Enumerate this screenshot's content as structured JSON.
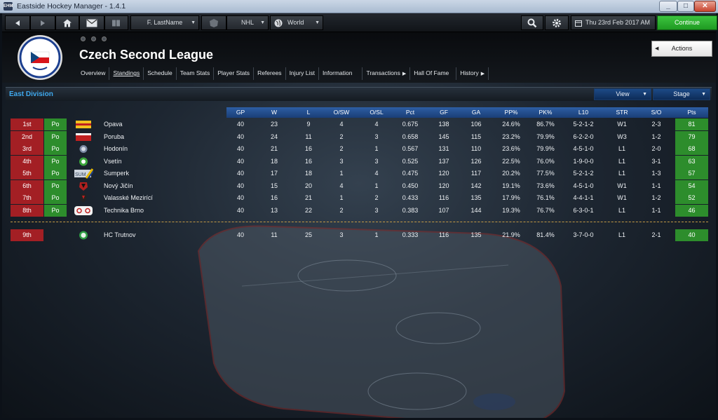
{
  "window": {
    "title": "Eastside Hockey Manager - 1.4.1",
    "app_icon": "EHM"
  },
  "toolbar": {
    "manager": "F. LastName",
    "league": "NHL",
    "region": "World",
    "date": "Thu 23rd Feb 2017 AM",
    "continue": "Continue"
  },
  "header": {
    "title": "Czech Second League",
    "actions": "Actions",
    "nav": [
      "Overview",
      "Standings",
      "Schedule",
      "Team Stats",
      "Player Stats",
      "Referees",
      "Injury List",
      "Information",
      "Transactions",
      "Hall Of Fame",
      "History"
    ]
  },
  "standings": {
    "division": "East Division",
    "view": "View",
    "stage": "Stage",
    "columns": [
      "GP",
      "W",
      "L",
      "O/SW",
      "O/SL",
      "Pct",
      "GF",
      "GA",
      "PP%",
      "PK%",
      "L10",
      "STR",
      "S/O",
      "Pts"
    ],
    "rows": [
      {
        "pos": "1st",
        "q": "Po",
        "team": "Opava",
        "gp": "40",
        "w": "23",
        "l": "9",
        "osw": "4",
        "osl": "4",
        "pct": "0.675",
        "gf": "138",
        "ga": "106",
        "pp": "24.6%",
        "pk": "86.7%",
        "l10": "5-2-1-2",
        "str": "W1",
        "so": "2-3",
        "pts": "81"
      },
      {
        "pos": "2nd",
        "q": "Po",
        "team": "Poruba",
        "gp": "40",
        "w": "24",
        "l": "11",
        "osw": "2",
        "osl": "3",
        "pct": "0.658",
        "gf": "145",
        "ga": "115",
        "pp": "23.2%",
        "pk": "79.9%",
        "l10": "6-2-2-0",
        "str": "W3",
        "so": "1-2",
        "pts": "79"
      },
      {
        "pos": "3rd",
        "q": "Po",
        "team": "Hodonín",
        "gp": "40",
        "w": "21",
        "l": "16",
        "osw": "2",
        "osl": "1",
        "pct": "0.567",
        "gf": "131",
        "ga": "110",
        "pp": "23.6%",
        "pk": "79.9%",
        "l10": "4-5-1-0",
        "str": "L1",
        "so": "2-0",
        "pts": "68"
      },
      {
        "pos": "4th",
        "q": "Po",
        "team": "Vsetín",
        "gp": "40",
        "w": "18",
        "l": "16",
        "osw": "3",
        "osl": "3",
        "pct": "0.525",
        "gf": "137",
        "ga": "126",
        "pp": "22.5%",
        "pk": "76.0%",
        "l10": "1-9-0-0",
        "str": "L1",
        "so": "3-1",
        "pts": "63"
      },
      {
        "pos": "5th",
        "q": "Po",
        "team": "Sumperk",
        "gp": "40",
        "w": "17",
        "l": "18",
        "osw": "1",
        "osl": "4",
        "pct": "0.475",
        "gf": "120",
        "ga": "117",
        "pp": "20.2%",
        "pk": "77.5%",
        "l10": "5-2-1-2",
        "str": "L1",
        "so": "1-3",
        "pts": "57"
      },
      {
        "pos": "6th",
        "q": "Po",
        "team": "Nový Jičín",
        "gp": "40",
        "w": "15",
        "l": "20",
        "osw": "4",
        "osl": "1",
        "pct": "0.450",
        "gf": "120",
        "ga": "142",
        "pp": "19.1%",
        "pk": "73.6%",
        "l10": "4-5-1-0",
        "str": "W1",
        "so": "1-1",
        "pts": "54"
      },
      {
        "pos": "7th",
        "q": "Po",
        "team": "Valasské Mezirící",
        "gp": "40",
        "w": "16",
        "l": "21",
        "osw": "1",
        "osl": "2",
        "pct": "0.433",
        "gf": "116",
        "ga": "135",
        "pp": "17.9%",
        "pk": "76.1%",
        "l10": "4-4-1-1",
        "str": "W1",
        "so": "1-2",
        "pts": "52"
      },
      {
        "pos": "8th",
        "q": "Po",
        "team": "Technika Brno",
        "gp": "40",
        "w": "13",
        "l": "22",
        "osw": "2",
        "osl": "3",
        "pct": "0.383",
        "gf": "107",
        "ga": "144",
        "pp": "19.3%",
        "pk": "76.7%",
        "l10": "6-3-0-1",
        "str": "L1",
        "so": "1-1",
        "pts": "46"
      },
      {
        "pos": "9th",
        "q": "",
        "team": "HC Trutnov",
        "gp": "40",
        "w": "11",
        "l": "25",
        "osw": "3",
        "osl": "1",
        "pct": "0.333",
        "gf": "116",
        "ga": "135",
        "pp": "21.9%",
        "pk": "81.4%",
        "l10": "3-7-0-0",
        "str": "L1",
        "so": "2-1",
        "pts": "40"
      }
    ]
  },
  "colors": {
    "position": "#a31f24",
    "qualified": "#2d8d2c",
    "header": "#1a3e76",
    "accent": "#3fa9ee",
    "continue": "#1f9a22"
  },
  "icons": [
    "back-icon",
    "forward-icon",
    "home-icon",
    "mail-icon",
    "book-icon",
    "nhl-icon",
    "globe-icon",
    "search-icon",
    "gear-icon",
    "calendar-icon"
  ]
}
